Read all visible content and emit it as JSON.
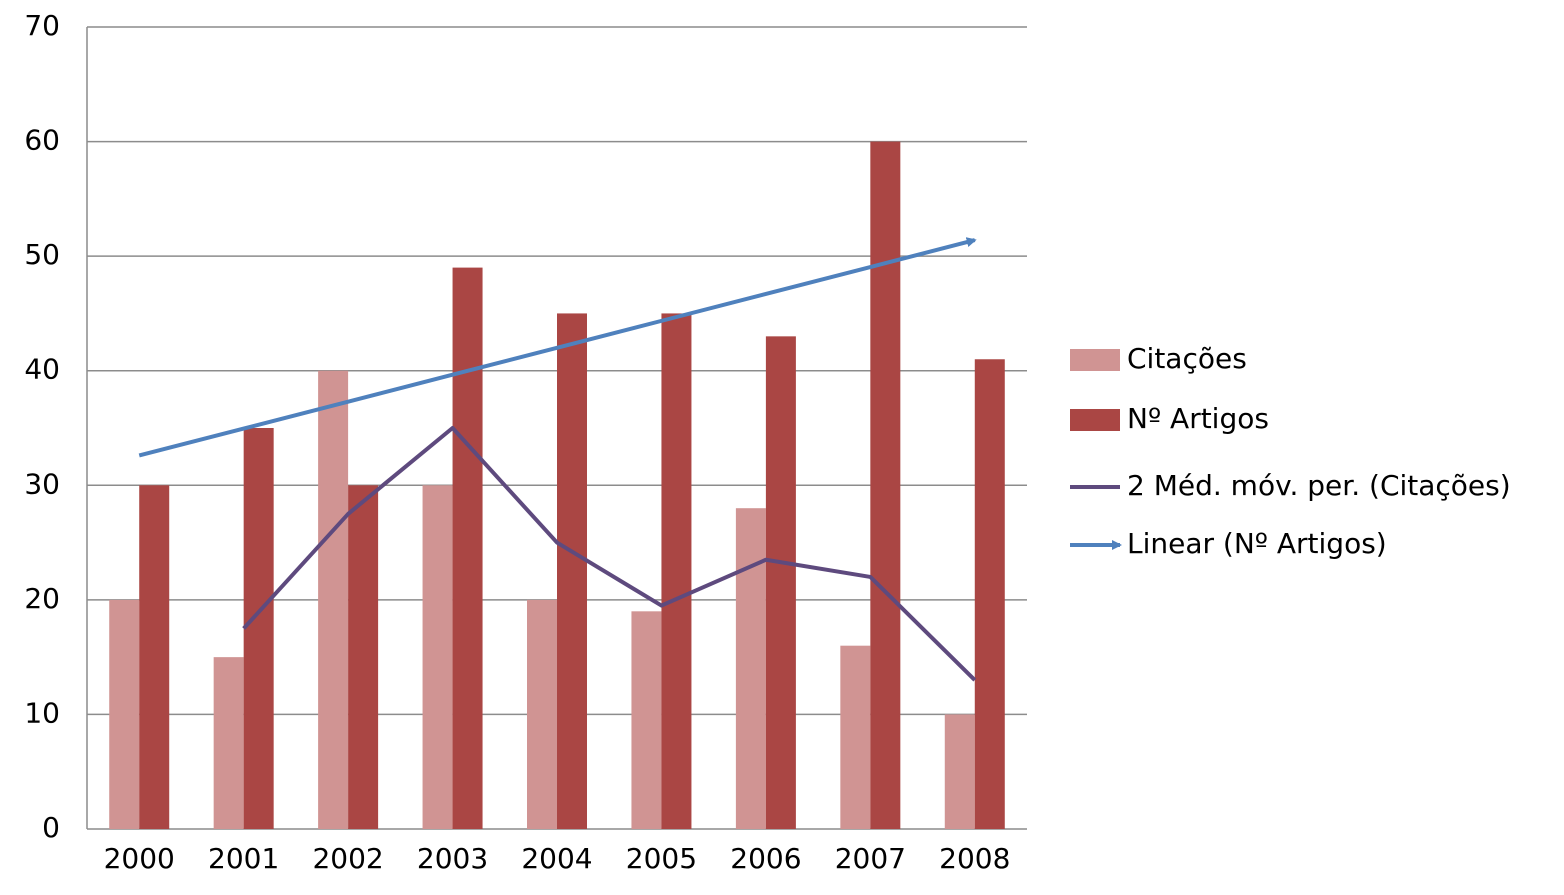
{
  "chart_data": {
    "type": "bar",
    "categories": [
      "2000",
      "2001",
      "2002",
      "2003",
      "2004",
      "2005",
      "2006",
      "2007",
      "2008"
    ],
    "series": [
      {
        "name": "Citações",
        "type": "bar",
        "color": "#d09493",
        "values": [
          20,
          15,
          40,
          30,
          20,
          19,
          28,
          16,
          10
        ]
      },
      {
        "name": "Nº Artigos",
        "type": "bar",
        "color": "#aa4644",
        "values": [
          30,
          35,
          30,
          49,
          45,
          45,
          43,
          60,
          41
        ]
      },
      {
        "name": "2 Méd. móv. per. (Citações)",
        "type": "line",
        "color": "#5e4a7e",
        "values": [
          null,
          17.5,
          27.5,
          35,
          25,
          19.5,
          23.5,
          22,
          13
        ]
      },
      {
        "name": "Linear (Nº Artigos)",
        "type": "line",
        "arrow": true,
        "color": "#4f81bd",
        "values": [
          32.6,
          34.95,
          37.3,
          39.65,
          42,
          44.35,
          46.7,
          49.05,
          51.4
        ]
      }
    ],
    "ylim": [
      0,
      70
    ],
    "yticks": [
      0,
      10,
      20,
      30,
      40,
      50,
      60,
      70
    ],
    "grid": true,
    "legend": "right"
  }
}
